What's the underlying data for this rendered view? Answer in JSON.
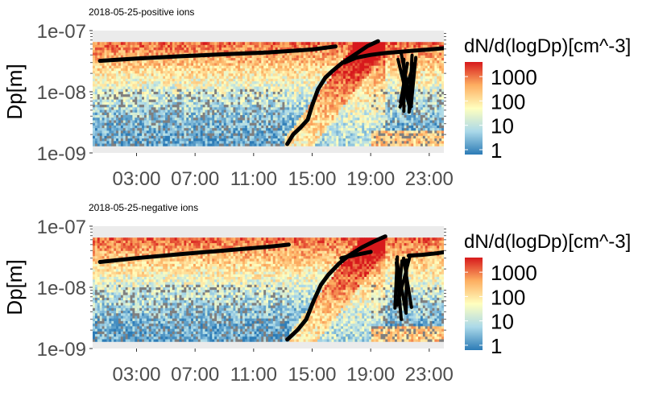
{
  "chart_data": [
    {
      "type": "heatmap",
      "title": "2018-05-25-positive ions",
      "xlabel": "",
      "ylabel": "Dp[m]",
      "x_ticks": [
        "03:00",
        "07:00",
        "11:00",
        "15:00",
        "19:00",
        "23:00"
      ],
      "x_range_hours": [
        0,
        24
      ],
      "y_scale": "log",
      "y_ticks": [
        "1e-07",
        "1e-08",
        "1e-09"
      ],
      "y_range": [
        1e-09,
        1e-07
      ],
      "colorbar": {
        "title": "dN/d(logDp)[cm^-3]",
        "scale": "log",
        "ticks": [
          "1000",
          "100",
          "10",
          "1"
        ],
        "colors": [
          "#d7191c",
          "#fdae61",
          "#ffffbf",
          "#abd9e9",
          "#2c7bb6"
        ]
      },
      "background_diameter_m": [
        1.3e-09,
        6.5e-08
      ],
      "traces": [
        {
          "x": [
            0.5,
            3,
            6,
            9,
            12,
            15,
            16.6
          ],
          "y": [
            3.2e-08,
            3.5e-08,
            3.8e-08,
            4.1e-08,
            4.4e-08,
            4.9e-08,
            5.5e-08
          ]
        },
        {
          "x": [
            13.3,
            13.7,
            14.2,
            14.7,
            15.0,
            15.4,
            15.9,
            16.4,
            17.0,
            17.6,
            18.2,
            18.8,
            19.5
          ],
          "y": [
            1.4e-09,
            2e-09,
            2.6e-09,
            3.5e-09,
            6e-09,
            1.1e-08,
            1.7e-08,
            2.2e-08,
            2.9e-08,
            3.6e-08,
            4.5e-08,
            5.6e-08,
            6.7e-08
          ]
        },
        {
          "x": [
            17.2,
            18.0,
            19.0,
            20.0,
            21.5,
            23.0,
            24.2
          ],
          "y": [
            3e-08,
            3.6e-08,
            4e-08,
            4.3e-08,
            4.6e-08,
            4.9e-08,
            5.2e-08
          ]
        }
      ]
    },
    {
      "type": "heatmap",
      "title": "2018-05-25-negative ions",
      "xlabel": "",
      "ylabel": "Dp[m]",
      "x_ticks": [
        "03:00",
        "07:00",
        "11:00",
        "15:00",
        "19:00",
        "23:00"
      ],
      "x_range_hours": [
        0,
        24
      ],
      "y_scale": "log",
      "y_ticks": [
        "1e-07",
        "1e-08",
        "1e-09"
      ],
      "y_range": [
        1e-09,
        1e-07
      ],
      "colorbar": {
        "title": "dN/d(logDp)[cm^-3]",
        "scale": "log",
        "ticks": [
          "1000",
          "100",
          "10",
          "1"
        ],
        "colors": [
          "#d7191c",
          "#fdae61",
          "#ffffbf",
          "#abd9e9",
          "#2c7bb6"
        ]
      },
      "background_diameter_m": [
        1.3e-09,
        6.5e-08
      ],
      "traces": [
        {
          "x": [
            0.5,
            3,
            6,
            9,
            12,
            13.4
          ],
          "y": [
            2.6e-08,
            3e-08,
            3.5e-08,
            4e-08,
            4.6e-08,
            5e-08
          ]
        },
        {
          "x": [
            13.3,
            14.0,
            14.6,
            15.1,
            15.6,
            16.1,
            16.8,
            17.5,
            18.4,
            19.2,
            20.0
          ],
          "y": [
            1.4e-09,
            2e-09,
            3e-09,
            6e-09,
            1.1e-08,
            1.6e-08,
            2.4e-08,
            3.3e-08,
            4.5e-08,
            5.6e-08,
            6.8e-08
          ]
        },
        {
          "x": [
            17.0,
            18.0,
            19.0
          ],
          "y": [
            3e-08,
            3.4e-08,
            3.8e-08
          ]
        },
        {
          "x": [
            21.6,
            22.5,
            23.5,
            24.2
          ],
          "y": [
            3.3e-08,
            3.4e-08,
            3.6e-08,
            3.8e-08
          ]
        }
      ]
    }
  ]
}
